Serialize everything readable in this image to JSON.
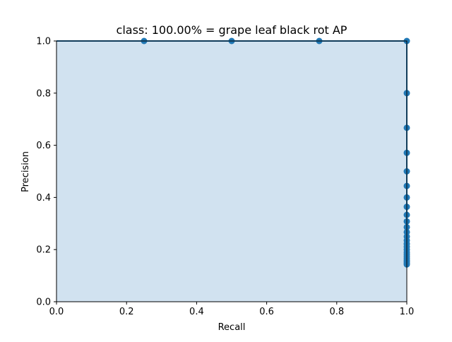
{
  "chart_data": {
    "type": "line",
    "title": "class: 100.00% = grape leaf black rot AP",
    "xlabel": "Recall",
    "ylabel": "Precision",
    "xlim": [
      0.0,
      1.0
    ],
    "ylim": [
      0.0,
      1.0
    ],
    "grid": false,
    "legend": "none",
    "x_ticks": [
      "0.0",
      "0.2",
      "0.4",
      "0.6",
      "0.8",
      "1.0"
    ],
    "y_ticks": [
      "0.0",
      "0.2",
      "0.4",
      "0.6",
      "0.8",
      "1.0"
    ],
    "colors": {
      "line": "#1f77b4",
      "fill": "#d1e2f0",
      "reference_line": "#ff9999"
    },
    "series": [
      {
        "x": [
          0.0,
          0.25,
          0.5,
          0.75,
          1.0,
          1.0,
          1.0,
          1.0,
          1.0,
          1.0,
          1.0,
          1.0,
          1.0,
          1.0,
          1.0,
          1.0,
          1.0,
          1.0,
          1.0,
          1.0,
          1.0,
          1.0,
          1.0,
          1.0,
          1.0,
          1.0,
          1.0,
          1.0,
          1.0
        ],
        "y": [
          1.0,
          1.0,
          1.0,
          1.0,
          1.0,
          0.8,
          0.667,
          0.571,
          0.5,
          0.444,
          0.4,
          0.364,
          0.333,
          0.308,
          0.286,
          0.267,
          0.25,
          0.235,
          0.222,
          0.211,
          0.2,
          0.19,
          0.182,
          0.174,
          0.167,
          0.16,
          0.154,
          0.148,
          0.143
        ],
        "markers": [
          false,
          true,
          true,
          true,
          true,
          true,
          true,
          true,
          true,
          true,
          true,
          true,
          true,
          true,
          true,
          true,
          true,
          true,
          true,
          true,
          true,
          true,
          true,
          true,
          true,
          true,
          true,
          true,
          true
        ]
      }
    ],
    "reference_line": {
      "x": [
        0.0,
        0.25
      ],
      "y": [
        1.0,
        1.0
      ]
    }
  }
}
